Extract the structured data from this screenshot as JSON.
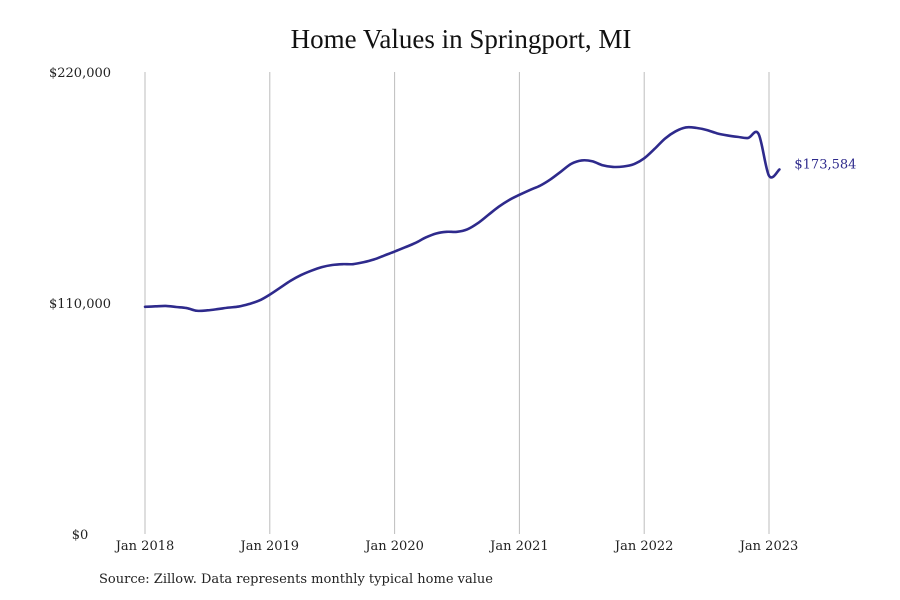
{
  "title": "Home Values in Springport, MI",
  "source": "Source: Zillow. Data represents monthly typical home value",
  "colors": {
    "line": "#2e2a8c",
    "grid": "#bdbdbd",
    "text": "#222222"
  },
  "chart_data": {
    "type": "line",
    "title": "Home Values in Springport, MI",
    "xlabel": "",
    "ylabel": "",
    "ylim": [
      0,
      220000
    ],
    "xlim": [
      "2018-01",
      "2023-12"
    ],
    "yticks": [
      0,
      110000,
      220000
    ],
    "ytick_labels": [
      "$0",
      "$110,000",
      "$220,000"
    ],
    "xticks": [
      "2018-01",
      "2019-01",
      "2020-01",
      "2021-01",
      "2022-01",
      "2023-01"
    ],
    "xtick_labels": [
      "Jan 2018",
      "Jan 2019",
      "Jan 2020",
      "Jan 2021",
      "Jan 2022",
      "Jan 2023"
    ],
    "grid": "vertical",
    "end_label": "$173,584",
    "series": [
      {
        "x": [
          "2018-01",
          "2018-02",
          "2018-03",
          "2018-04",
          "2018-05",
          "2018-06",
          "2018-07",
          "2018-08",
          "2018-09",
          "2018-10",
          "2018-11",
          "2018-12",
          "2019-01",
          "2019-02",
          "2019-03",
          "2019-04",
          "2019-05",
          "2019-06",
          "2019-07",
          "2019-08",
          "2019-09",
          "2019-10",
          "2019-11",
          "2019-12",
          "2020-01",
          "2020-02",
          "2020-03",
          "2020-04",
          "2020-05",
          "2020-06",
          "2020-07",
          "2020-08",
          "2020-09",
          "2020-10",
          "2020-11",
          "2020-12",
          "2021-01",
          "2021-02",
          "2021-03",
          "2021-04",
          "2021-05",
          "2021-06",
          "2021-07",
          "2021-08",
          "2021-09",
          "2021-10",
          "2021-11",
          "2021-12",
          "2022-01",
          "2022-02",
          "2022-03",
          "2022-04",
          "2022-05",
          "2022-06",
          "2022-07",
          "2022-08",
          "2022-09",
          "2022-10",
          "2022-11",
          "2022-12",
          "2023-01",
          "2023-02"
        ],
        "y": [
          108200,
          108400,
          108600,
          108100,
          107600,
          106300,
          106500,
          107100,
          107800,
          108300,
          109500,
          111200,
          114000,
          117300,
          120600,
          123300,
          125400,
          127100,
          128100,
          128500,
          128500,
          129400,
          130700,
          132600,
          134500,
          136500,
          138600,
          141200,
          143100,
          143900,
          143900,
          145100,
          148000,
          151900,
          155800,
          159000,
          161500,
          163800,
          165900,
          168900,
          172600,
          176300,
          177900,
          177500,
          175600,
          174800,
          175000,
          176100,
          178900,
          183400,
          188300,
          191700,
          193600,
          193400,
          192400,
          190800,
          189800,
          189100,
          188600,
          190500,
          173584,
          173584
        ]
      }
    ]
  }
}
